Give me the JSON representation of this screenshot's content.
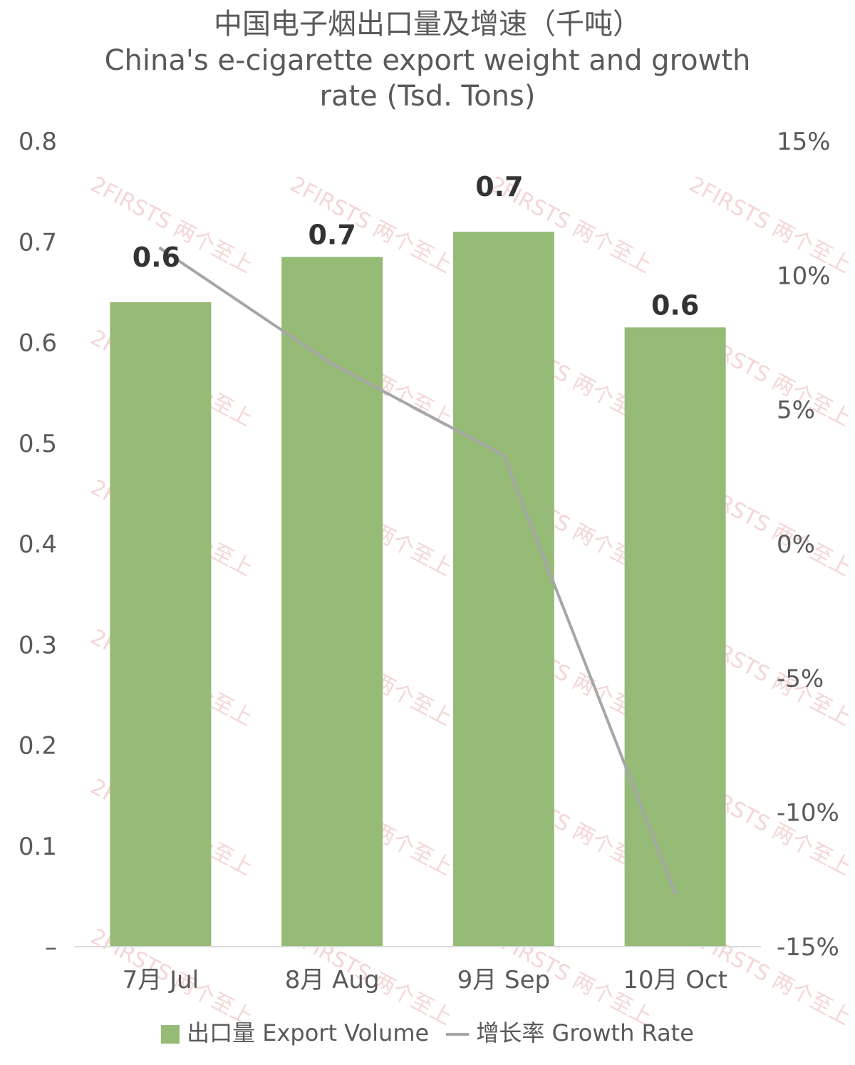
{
  "chart_data": {
    "type": "bar",
    "title": "中国电子烟出口量及增速（千吨）",
    "subtitle": "China's e-cigarette export weight and growth rate (Tsd. Tons)",
    "categories": [
      "7月 Jul",
      "8月 Aug",
      "9月 Sep",
      "10月 Oct"
    ],
    "series": [
      {
        "name": "出口量 Export Volume",
        "type": "bar",
        "axis": "left",
        "values": [
          0.64,
          0.685,
          0.71,
          0.615
        ],
        "data_labels": [
          "0.6",
          "0.7",
          "0.7",
          "0.6"
        ],
        "color": "#95bb77"
      },
      {
        "name": "增长率 Growth Rate",
        "type": "line",
        "axis": "right",
        "values": [
          0.11,
          0.067,
          0.033,
          -0.13
        ],
        "color": "#a6a6a6"
      }
    ],
    "y_left": {
      "range": [
        0,
        0.8
      ],
      "ticks": [
        "–",
        "0.1",
        "0.2",
        "0.3",
        "0.4",
        "0.5",
        "0.6",
        "0.7",
        "0.8"
      ]
    },
    "y_right": {
      "range": [
        -0.15,
        0.15
      ],
      "ticks": [
        "-15%",
        "-10%",
        "-5%",
        "0%",
        "5%",
        "10%",
        "15%"
      ]
    },
    "grid": false,
    "legend_position": "bottom",
    "watermark": "2FIRSTS 两个至上"
  }
}
